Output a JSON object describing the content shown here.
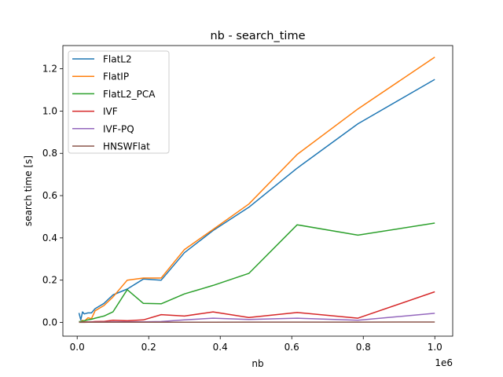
{
  "chart_data": {
    "type": "line",
    "title": "nb - search_time",
    "xlabel": "nb",
    "ylabel": "search time [s]",
    "x_offset_label": "1e6",
    "xlim": [
      -0.04,
      1.05
    ],
    "ylim": [
      -0.065,
      1.31
    ],
    "x_ticks": [
      0.0,
      0.2,
      0.4,
      0.6,
      0.8,
      1.0
    ],
    "x_tick_labels": [
      "0.0",
      "0.2",
      "0.4",
      "0.6",
      "0.8",
      "1.0"
    ],
    "y_ticks": [
      0.0,
      0.2,
      0.4,
      0.6,
      0.8,
      1.0,
      1.2
    ],
    "y_tick_labels": [
      "0.0",
      "0.2",
      "0.4",
      "0.6",
      "0.8",
      "1.0",
      "1.2"
    ],
    "grid": false,
    "legend_position": "top-left",
    "x": [
      0.005,
      0.01,
      0.015,
      0.02,
      0.03,
      0.04,
      0.05,
      0.075,
      0.1,
      0.14,
      0.185,
      0.235,
      0.3,
      0.38,
      0.48,
      0.615,
      0.785,
      1.0
    ],
    "series": [
      {
        "name": "FlatL2",
        "color": "#1f77b4",
        "values": [
          0.045,
          0.012,
          0.05,
          0.04,
          0.045,
          0.045,
          0.065,
          0.09,
          0.13,
          0.158,
          0.205,
          0.2,
          0.33,
          0.435,
          0.545,
          0.73,
          0.94,
          1.15
        ]
      },
      {
        "name": "FlatIP",
        "color": "#ff7f0e",
        "values": [
          0.002,
          0.004,
          0.01,
          0.005,
          0.022,
          0.018,
          0.055,
          0.08,
          0.12,
          0.2,
          0.21,
          0.21,
          0.345,
          0.44,
          0.56,
          0.795,
          1.01,
          1.255
        ]
      },
      {
        "name": "FlatL2_PCA",
        "color": "#2ca02c",
        "values": [
          0.004,
          0.005,
          0.006,
          0.008,
          0.012,
          0.015,
          0.02,
          0.03,
          0.05,
          0.155,
          0.09,
          0.088,
          0.135,
          0.175,
          0.232,
          0.462,
          0.413,
          0.47
        ]
      },
      {
        "name": "IVF",
        "color": "#d62728",
        "values": [
          0.001,
          0.001,
          0.002,
          0.002,
          0.003,
          0.003,
          0.004,
          0.005,
          0.01,
          0.008,
          0.012,
          0.037,
          0.03,
          0.05,
          0.023,
          0.047,
          0.02,
          0.145
        ]
      },
      {
        "name": "IVF-PQ",
        "color": "#9467bd",
        "values": [
          0.001,
          0.001,
          0.001,
          0.001,
          0.002,
          0.002,
          0.002,
          0.002,
          0.003,
          0.003,
          0.003,
          0.004,
          0.012,
          0.02,
          0.014,
          0.02,
          0.01,
          0.043
        ]
      },
      {
        "name": "HNSWFlat",
        "color": "#8c564b",
        "values": [
          0.0005,
          0.0005,
          0.0005,
          0.0005,
          0.0006,
          0.0006,
          0.0007,
          0.0007,
          0.0008,
          0.0009,
          0.001,
          0.001,
          0.0012,
          0.0013,
          0.0014,
          0.0015,
          0.0016,
          0.0018
        ]
      }
    ]
  }
}
